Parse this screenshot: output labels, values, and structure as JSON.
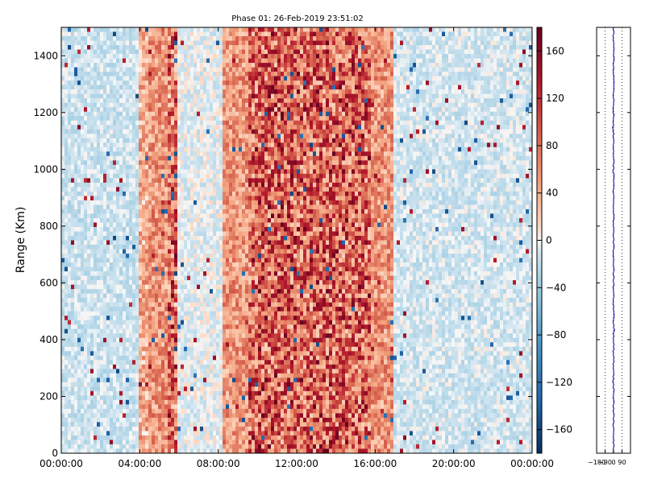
{
  "chart_data": [
    {
      "type": "heatmap",
      "title": "Phase 01: 26-Feb-2019 23:51:02",
      "xlabel": "",
      "ylabel": "Range (Km)",
      "x_tick_labels": [
        "00:00:00",
        "04:00:00",
        "08:00:00",
        "12:00:00",
        "16:00:00",
        "20:00:00",
        "00:00:00"
      ],
      "x_range_hours": [
        0,
        24
      ],
      "y_ticks": [
        0,
        200,
        400,
        600,
        800,
        1000,
        1200,
        1400
      ],
      "ylim": [
        0,
        1500
      ],
      "colorbar": {
        "cmap": "RdBu_r",
        "ticks": [
          -160,
          -120,
          -80,
          -40,
          0,
          40,
          80,
          120,
          160
        ],
        "range": [
          -180,
          180
        ]
      },
      "bands": [
        {
          "start_h": 0.0,
          "end_h": 3.9,
          "value": -15
        },
        {
          "start_h": 3.9,
          "end_h": 4.5,
          "value": 40
        },
        {
          "start_h": 4.5,
          "end_h": 5.4,
          "value": 55
        },
        {
          "start_h": 5.4,
          "end_h": 6.0,
          "value": 75
        },
        {
          "start_h": 6.0,
          "end_h": 8.2,
          "value": -5
        },
        {
          "start_h": 8.2,
          "end_h": 9.5,
          "value": 55
        },
        {
          "start_h": 9.5,
          "end_h": 15.8,
          "value": 85
        },
        {
          "start_h": 15.8,
          "end_h": 17.0,
          "value": 55
        },
        {
          "start_h": 17.0,
          "end_h": 24.0,
          "value": -12
        }
      ],
      "grid": false
    },
    {
      "type": "line",
      "x_tick_labels": [
        "−180",
        "−90",
        "0",
        "90"
      ],
      "xlim": [
        -180,
        180
      ],
      "ylim": [
        0,
        1500
      ],
      "series": [
        {
          "values_description_omitted": true,
          "mean": 0,
          "color": "#0000aa"
        }
      ]
    }
  ],
  "palette": {
    "neg_dark": "#053061",
    "neg_mid": "#4393c3",
    "neg_light": "#d1e5f0",
    "neutral": "#f7f7f7",
    "pos_light": "#fddbc7",
    "pos_mid": "#d6604d",
    "pos_dark": "#67001f",
    "profile_line": "#0000aa"
  }
}
